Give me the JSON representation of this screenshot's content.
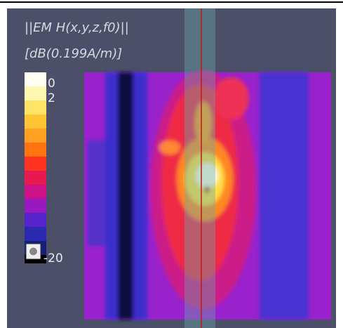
{
  "legend": {
    "title_line1": "||EM H(x,y,z,f0)||",
    "title_line2": "[dB(0.199A/m)]",
    "ticks": [
      "0",
      "2",
      "-20"
    ]
  }
}
